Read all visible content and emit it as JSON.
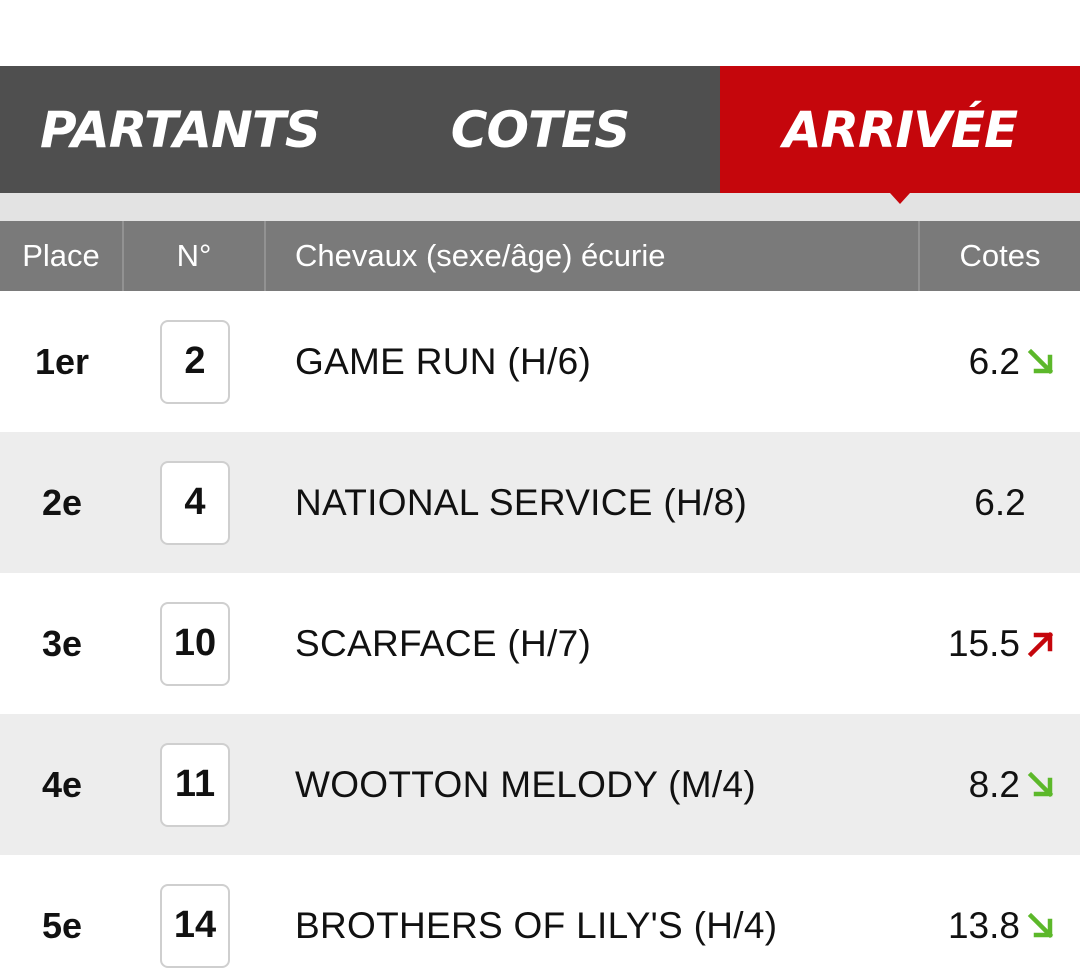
{
  "tabs": [
    {
      "label": "PARTANTS",
      "active": false
    },
    {
      "label": "COTES",
      "active": false
    },
    {
      "label": "ARRIVÉE",
      "active": true
    }
  ],
  "table": {
    "headers": {
      "place": "Place",
      "num": "N°",
      "horse": "Chevaux (sexe/âge) écurie",
      "odds": "Cotes"
    },
    "rows": [
      {
        "place": "1er",
        "num": "2",
        "horse": "GAME RUN (H/6)",
        "odds": "6.2",
        "trend": "down"
      },
      {
        "place": "2e",
        "num": "4",
        "horse": "NATIONAL SERVICE (H/8)",
        "odds": "6.2",
        "trend": "none"
      },
      {
        "place": "3e",
        "num": "10",
        "horse": "SCARFACE (H/7)",
        "odds": "15.5",
        "trend": "up"
      },
      {
        "place": "4e",
        "num": "11",
        "horse": "WOOTTON MELODY (M/4)",
        "odds": "8.2",
        "trend": "down"
      },
      {
        "place": "5e",
        "num": "14",
        "horse": "BROTHERS OF LILY'S (H/4)",
        "odds": "13.8",
        "trend": "down"
      }
    ]
  },
  "icons": {
    "down": "arrow-down-right-icon",
    "up": "arrow-up-right-icon"
  },
  "colors": {
    "tab_bg": "#4f4f4f",
    "tab_active": "#c5060c",
    "header_bg": "#7a7a7a",
    "trend_down": "#5cb82a",
    "trend_up": "#c5060c"
  }
}
